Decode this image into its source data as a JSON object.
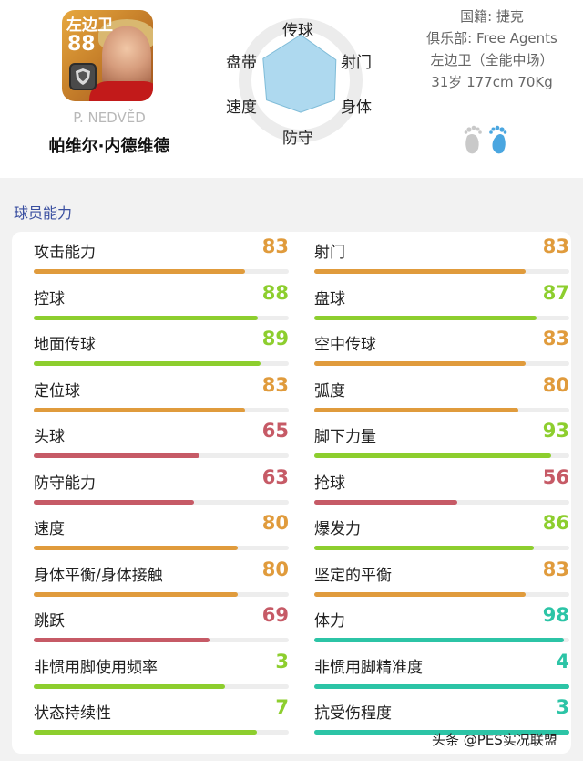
{
  "colors": {
    "orange": "#e09b3c",
    "green": "#8dce2e",
    "red": "#c65a66",
    "teal": "#2cc4a6",
    "section_title": "#3a4fa0",
    "radar_fill": "#aed9ef",
    "foot_right": "#4aa6e0",
    "foot_left": "#c9c9c9"
  },
  "player_card": {
    "position": "左边卫",
    "rating": "88",
    "club_badge_icon": "club-crest-icon"
  },
  "player": {
    "name_en": "P. NEDVĚD",
    "name_cn": "帕维尔·内德维德"
  },
  "radar": {
    "labels": {
      "top": "传球",
      "upper_right": "射门",
      "lower_right": "身体",
      "bottom": "防守",
      "lower_left": "速度",
      "upper_left": "盘带"
    },
    "values": {
      "top": 0.92,
      "upper_right": 0.83,
      "lower_right": 0.8,
      "bottom": 0.65,
      "lower_left": 0.8,
      "upper_left": 0.88
    }
  },
  "info": {
    "nationality": "国籍: 捷克",
    "club": "俱乐部: Free Agents",
    "position_line": "左边卫（全能中场）",
    "body_line": "31岁 177cm 70Kg"
  },
  "footedness": {
    "icon": "feet-icon",
    "preferred": "right"
  },
  "section": {
    "title": "球员能力"
  },
  "stats": {
    "left": [
      {
        "label": "攻击能力",
        "value": "83",
        "pct": 0.83,
        "color": "orange"
      },
      {
        "label": "控球",
        "value": "88",
        "pct": 0.88,
        "color": "green"
      },
      {
        "label": "地面传球",
        "value": "89",
        "pct": 0.89,
        "color": "green"
      },
      {
        "label": "定位球",
        "value": "83",
        "pct": 0.83,
        "color": "orange"
      },
      {
        "label": "头球",
        "value": "65",
        "pct": 0.65,
        "color": "red"
      },
      {
        "label": "防守能力",
        "value": "63",
        "pct": 0.63,
        "color": "red"
      },
      {
        "label": "速度",
        "value": "80",
        "pct": 0.8,
        "color": "orange"
      },
      {
        "label": "身体平衡/身体接触",
        "value": "80",
        "pct": 0.8,
        "color": "orange"
      },
      {
        "label": "跳跃",
        "value": "69",
        "pct": 0.69,
        "color": "red"
      },
      {
        "label": "非惯用脚使用频率",
        "value": "3",
        "pct": 0.75,
        "color": "green"
      },
      {
        "label": "状态持续性",
        "value": "7",
        "pct": 0.875,
        "color": "green"
      }
    ],
    "right": [
      {
        "label": "射门",
        "value": "83",
        "pct": 0.83,
        "color": "orange"
      },
      {
        "label": "盘球",
        "value": "87",
        "pct": 0.87,
        "color": "green"
      },
      {
        "label": "空中传球",
        "value": "83",
        "pct": 0.83,
        "color": "orange"
      },
      {
        "label": "弧度",
        "value": "80",
        "pct": 0.8,
        "color": "orange"
      },
      {
        "label": "脚下力量",
        "value": "93",
        "pct": 0.93,
        "color": "green"
      },
      {
        "label": "抢球",
        "value": "56",
        "pct": 0.56,
        "color": "red"
      },
      {
        "label": "爆发力",
        "value": "86",
        "pct": 0.86,
        "color": "green"
      },
      {
        "label": "坚定的平衡",
        "value": "83",
        "pct": 0.83,
        "color": "orange"
      },
      {
        "label": "体力",
        "value": "98",
        "pct": 0.98,
        "color": "teal"
      },
      {
        "label": "非惯用脚精准度",
        "value": "4",
        "pct": 1.0,
        "color": "teal"
      },
      {
        "label": "抗受伤程度",
        "value": "3",
        "pct": 1.0,
        "color": "teal"
      }
    ]
  },
  "watermark": "头条 @PES实况联盟"
}
